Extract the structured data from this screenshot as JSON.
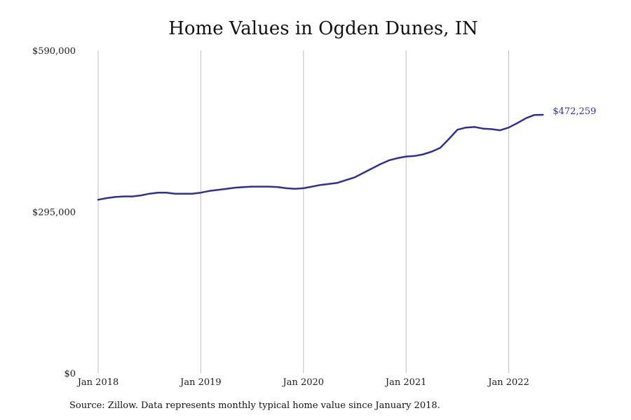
{
  "chart_data": {
    "type": "line",
    "title": "Home Values in Ogden Dunes, IN",
    "xlabel": "",
    "ylabel": "",
    "y_ticks": [
      {
        "value": 0,
        "label": "$0"
      },
      {
        "value": 295000,
        "label": "$295,000"
      },
      {
        "value": 590000,
        "label": "$590,000"
      }
    ],
    "ylim": [
      0,
      590000
    ],
    "x_ticks": [
      "Jan 2018",
      "Jan 2019",
      "Jan 2020",
      "Jan 2021",
      "Jan 2022"
    ],
    "xlim": [
      "Jan 2018",
      "Jan 2023"
    ],
    "grid": "vertical",
    "end_label": "$472,259",
    "colors": {
      "line": "#2e3192",
      "grid": "#bfbfbf"
    },
    "series": [
      {
        "x": [
          "Jan 2018",
          "Feb 2018",
          "Mar 2018",
          "Apr 2018",
          "May 2018",
          "Jun 2018",
          "Jul 2018",
          "Aug 2018",
          "Sep 2018",
          "Oct 2018",
          "Nov 2018",
          "Dec 2018",
          "Jan 2019",
          "Feb 2019",
          "Mar 2019",
          "Apr 2019",
          "May 2019",
          "Jun 2019",
          "Jul 2019",
          "Aug 2019",
          "Sep 2019",
          "Oct 2019",
          "Nov 2019",
          "Dec 2019",
          "Jan 2020",
          "Feb 2020",
          "Mar 2020",
          "Apr 2020",
          "May 2020",
          "Jun 2020",
          "Jul 2020",
          "Aug 2020",
          "Sep 2020",
          "Oct 2020",
          "Nov 2020",
          "Dec 2020",
          "Jan 2021",
          "Feb 2021",
          "Mar 2021",
          "Apr 2021",
          "May 2021",
          "Jun 2021",
          "Jul 2021",
          "Aug 2021",
          "Sep 2021",
          "Oct 2021",
          "Nov 2021",
          "Dec 2021",
          "Jan 2022",
          "Feb 2022",
          "Mar 2022",
          "Apr 2022",
          "May 2022"
        ],
        "values": [
          317000,
          320000,
          322000,
          323000,
          323000,
          325000,
          328000,
          330000,
          330000,
          328000,
          328000,
          328000,
          330000,
          333000,
          335000,
          337000,
          339000,
          340000,
          341000,
          341000,
          341000,
          340000,
          338000,
          337000,
          338000,
          341000,
          344000,
          346000,
          348000,
          353000,
          358000,
          366000,
          374000,
          382000,
          389000,
          393000,
          396000,
          397000,
          400000,
          405000,
          412000,
          428000,
          445000,
          449000,
          450000,
          447000,
          446000,
          444000,
          449000,
          457000,
          466000,
          472000,
          472259
        ]
      }
    ]
  },
  "source": "Source: Zillow. Data represents monthly typical home value since January 2018."
}
